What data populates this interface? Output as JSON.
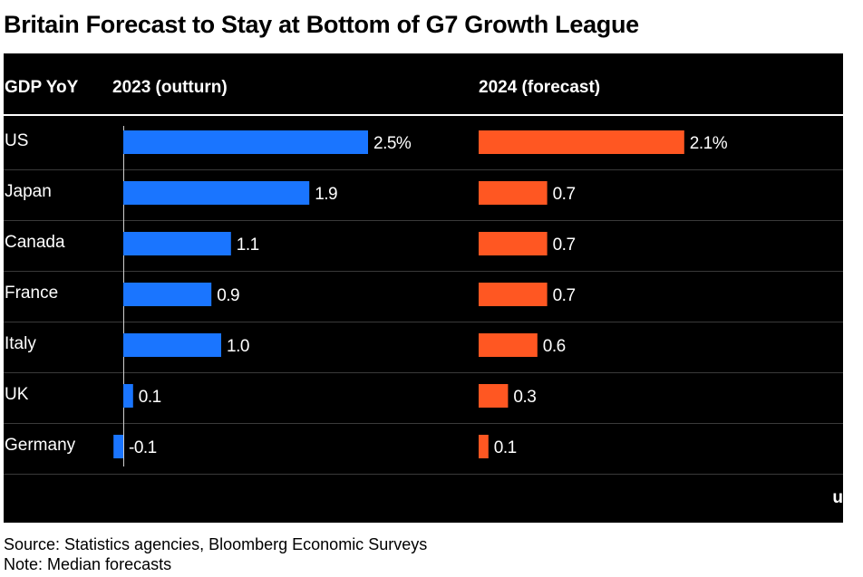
{
  "title": "Britain Forecast to Stay at Bottom of G7 Growth League",
  "footer": {
    "source": "Source: Statistics agencies, Bloomberg Economic Surveys",
    "note": "Note: Median forecasts"
  },
  "cut_label": "u",
  "colors": {
    "background": "#000000",
    "text": "#ffffff",
    "grid": "#3a3a3a",
    "series_2023": "#1a75ff",
    "series_2024": "#ff5722"
  },
  "chart_data": {
    "type": "bar",
    "orientation": "horizontal",
    "category_header": "GDP YoY",
    "categories": [
      "US",
      "Japan",
      "Canada",
      "France",
      "Italy",
      "UK",
      "Germany"
    ],
    "series": [
      {
        "name": "2023 (outturn)",
        "values": [
          2.5,
          1.9,
          1.1,
          0.9,
          1.0,
          0.1,
          -0.1
        ],
        "labels": [
          "2.5%",
          "1.9",
          "1.1",
          "0.9",
          "1.0",
          "0.1",
          "-0.1"
        ],
        "color": "#1a75ff"
      },
      {
        "name": "2024 (forecast)",
        "values": [
          2.1,
          0.7,
          0.7,
          0.7,
          0.6,
          0.3,
          0.1
        ],
        "labels": [
          "2.1%",
          "0.7",
          "0.7",
          "0.7",
          "0.6",
          "0.3",
          "0.1"
        ],
        "color": "#ff5722"
      }
    ]
  }
}
